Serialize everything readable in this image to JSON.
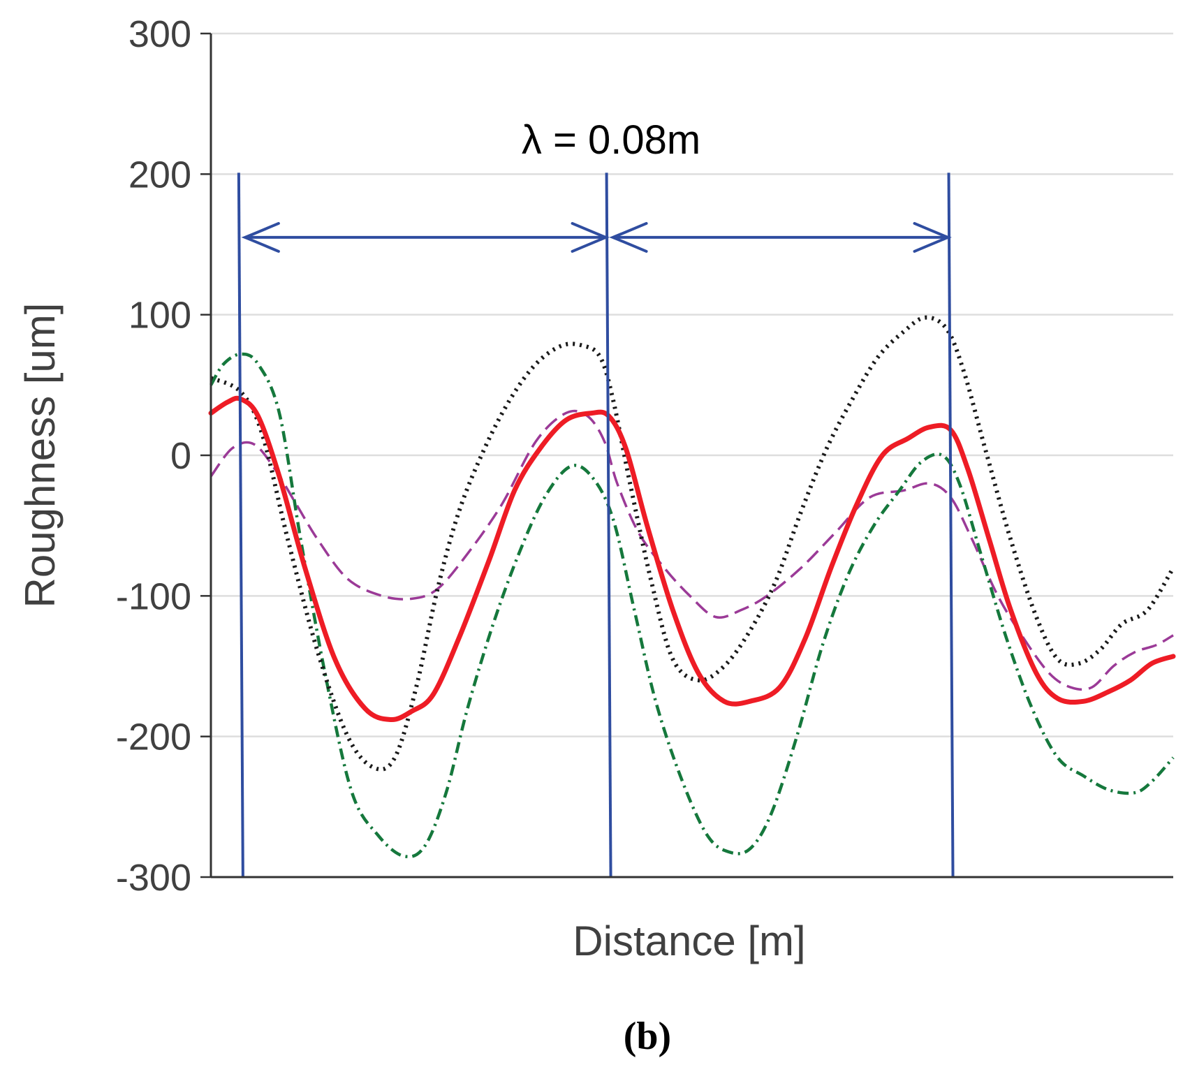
{
  "chart_data": {
    "type": "line",
    "title": "",
    "xlabel": "Distance [m]",
    "ylabel": "Roughness [um]",
    "xlim": [
      0,
      0.225
    ],
    "ylim": [
      -300,
      300
    ],
    "yticks": [
      -300,
      -200,
      -100,
      0,
      100,
      200,
      300
    ],
    "ytick_labels": [
      "-300",
      "-200",
      "-100",
      "0",
      "100",
      "200",
      "300"
    ],
    "grid": true,
    "panel_label": "(b)",
    "annotation": {
      "text": "λ = 0.08m",
      "wavelength": 0.08,
      "marker_x": [
        0.007,
        0.093,
        0.173
      ],
      "arrow_y": 155
    },
    "series": [
      {
        "name": "black-dotted",
        "color": "#1a1a1a",
        "style": "dotted",
        "x": [
          0,
          0.007,
          0.012,
          0.018,
          0.025,
          0.032,
          0.038,
          0.043,
          0.048,
          0.053,
          0.058,
          0.064,
          0.07,
          0.076,
          0.082,
          0.087,
          0.091,
          0.094,
          0.098,
          0.103,
          0.108,
          0.114,
          0.12,
          0.126,
          0.132,
          0.138,
          0.144,
          0.15,
          0.156,
          0.162,
          0.167,
          0.172,
          0.176,
          0.181,
          0.187,
          0.193,
          0.198,
          0.203,
          0.208,
          0.213,
          0.219,
          0.225
        ],
        "y": [
          55,
          45,
          15,
          -60,
          -140,
          -200,
          -222,
          -215,
          -165,
          -95,
          -40,
          5,
          40,
          65,
          78,
          78,
          70,
          40,
          -20,
          -90,
          -145,
          -160,
          -150,
          -125,
          -90,
          -40,
          5,
          40,
          70,
          88,
          98,
          90,
          60,
          5,
          -60,
          -115,
          -145,
          -148,
          -138,
          -120,
          -110,
          -80
        ]
      },
      {
        "name": "red-solid",
        "color": "#ee1c25",
        "style": "solid",
        "x": [
          0,
          0.004,
          0.007,
          0.011,
          0.016,
          0.022,
          0.029,
          0.036,
          0.042,
          0.047,
          0.052,
          0.058,
          0.065,
          0.071,
          0.077,
          0.083,
          0.089,
          0.093,
          0.097,
          0.102,
          0.108,
          0.114,
          0.12,
          0.126,
          0.133,
          0.139,
          0.145,
          0.151,
          0.157,
          0.163,
          0.168,
          0.173,
          0.177,
          0.182,
          0.187,
          0.193,
          0.198,
          0.204,
          0.21,
          0.215,
          0.22,
          0.225
        ],
        "y": [
          30,
          38,
          40,
          28,
          -15,
          -80,
          -145,
          -180,
          -188,
          -182,
          -170,
          -130,
          -75,
          -25,
          5,
          25,
          30,
          28,
          5,
          -50,
          -110,
          -155,
          -175,
          -175,
          -165,
          -130,
          -80,
          -35,
          0,
          12,
          20,
          18,
          -10,
          -60,
          -110,
          -155,
          -173,
          -175,
          -168,
          -160,
          -148,
          -143
        ]
      },
      {
        "name": "purple-dashed",
        "color": "#9b3a97",
        "style": "dashed",
        "x": [
          0,
          0.005,
          0.01,
          0.015,
          0.02,
          0.025,
          0.032,
          0.04,
          0.047,
          0.053,
          0.06,
          0.068,
          0.076,
          0.083,
          0.088,
          0.092,
          0.095,
          0.1,
          0.106,
          0.112,
          0.118,
          0.124,
          0.13,
          0.138,
          0.146,
          0.154,
          0.162,
          0.168,
          0.173,
          0.178,
          0.184,
          0.19,
          0.196,
          0.201,
          0.206,
          0.211,
          0.216,
          0.221,
          0.225
        ],
        "y": [
          -15,
          5,
          8,
          -10,
          -35,
          -60,
          -88,
          -100,
          -102,
          -95,
          -70,
          -35,
          10,
          30,
          28,
          10,
          -20,
          -55,
          -80,
          -100,
          -115,
          -110,
          -100,
          -80,
          -55,
          -30,
          -25,
          -20,
          -30,
          -60,
          -100,
          -130,
          -155,
          -165,
          -165,
          -150,
          -140,
          -135,
          -128
        ]
      },
      {
        "name": "green-dashdot",
        "color": "#15783c",
        "style": "dashdot",
        "x": [
          0,
          0.003,
          0.007,
          0.011,
          0.016,
          0.021,
          0.027,
          0.033,
          0.039,
          0.045,
          0.05,
          0.055,
          0.06,
          0.066,
          0.072,
          0.078,
          0.084,
          0.089,
          0.094,
          0.099,
          0.104,
          0.11,
          0.116,
          0.121,
          0.126,
          0.131,
          0.137,
          0.143,
          0.149,
          0.155,
          0.161,
          0.166,
          0.171,
          0.175,
          0.18,
          0.186,
          0.192,
          0.198,
          0.204,
          0.21,
          0.216,
          0.22,
          0.225
        ],
        "y": [
          50,
          65,
          72,
          65,
          30,
          -60,
          -160,
          -240,
          -270,
          -285,
          -278,
          -240,
          -180,
          -120,
          -70,
          -30,
          -8,
          -15,
          -45,
          -110,
          -175,
          -230,
          -270,
          -282,
          -280,
          -255,
          -200,
          -135,
          -85,
          -50,
          -25,
          -5,
          0,
          -20,
          -70,
          -130,
          -180,
          -215,
          -228,
          -238,
          -240,
          -232,
          -215
        ]
      }
    ]
  }
}
